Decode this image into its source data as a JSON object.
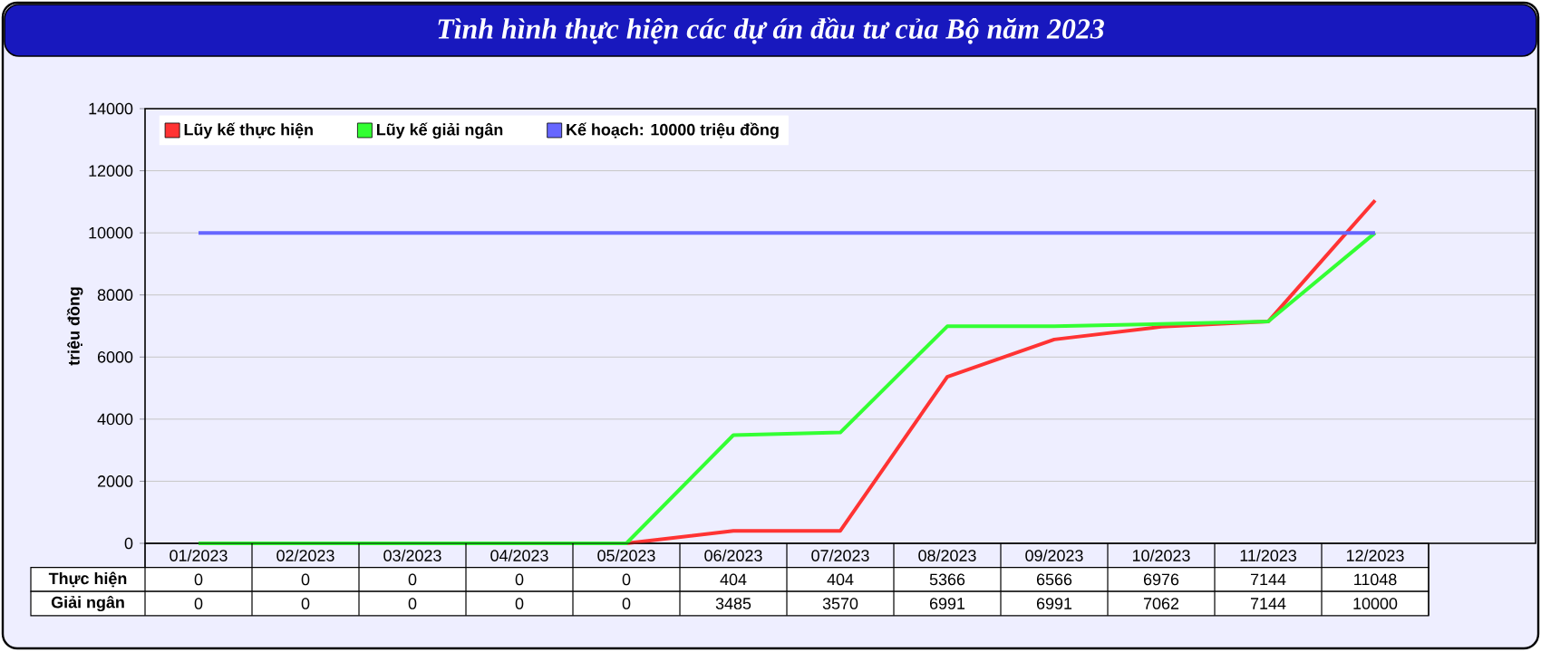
{
  "chart_data": {
    "type": "line",
    "title": "Tình hình thực hiện các dự án đầu tư của Bộ năm 2023",
    "ylabel": "triệu đồng",
    "categories": [
      "01/2023",
      "02/2023",
      "03/2023",
      "04/2023",
      "05/2023",
      "06/2023",
      "07/2023",
      "08/2023",
      "09/2023",
      "10/2023",
      "11/2023",
      "12/2023"
    ],
    "series": [
      {
        "name": "Lũy kế thực hiện",
        "color": "#ff3333",
        "values": [
          null,
          null,
          null,
          null,
          0,
          404,
          404,
          5366,
          6566,
          6976,
          7144,
          11048
        ],
        "value_labels": [
          "0",
          "0",
          "0",
          "0",
          "0",
          "404",
          "404",
          "5366",
          "6566",
          "6976",
          "7144",
          "11048"
        ]
      },
      {
        "name": "Lũy kế giải ngân",
        "color": "#33ff33",
        "values": [
          0,
          0,
          0,
          0,
          0,
          3485,
          3570,
          6991,
          6991,
          7062,
          7144,
          10000
        ],
        "value_labels": [
          "0",
          "0",
          "0",
          "0",
          "0",
          "3485",
          "3570",
          "6991",
          "6991",
          "7062",
          "7144",
          "10000"
        ]
      },
      {
        "name": "Kế hoạch: 10000 triệu đồng",
        "color": "#6666ff",
        "values": [
          10000,
          10000,
          10000,
          10000,
          10000,
          10000,
          10000,
          10000,
          10000,
          10000,
          10000,
          10000
        ]
      }
    ],
    "ylim": [
      0,
      14000
    ],
    "yticks": [
      0,
      2000,
      4000,
      6000,
      8000,
      10000,
      12000,
      14000
    ],
    "grid": true,
    "legend": "top left",
    "marker": "none",
    "line_style": "solid",
    "annotations": [
      "Thực hiện",
      "Giải ngân"
    ]
  }
}
